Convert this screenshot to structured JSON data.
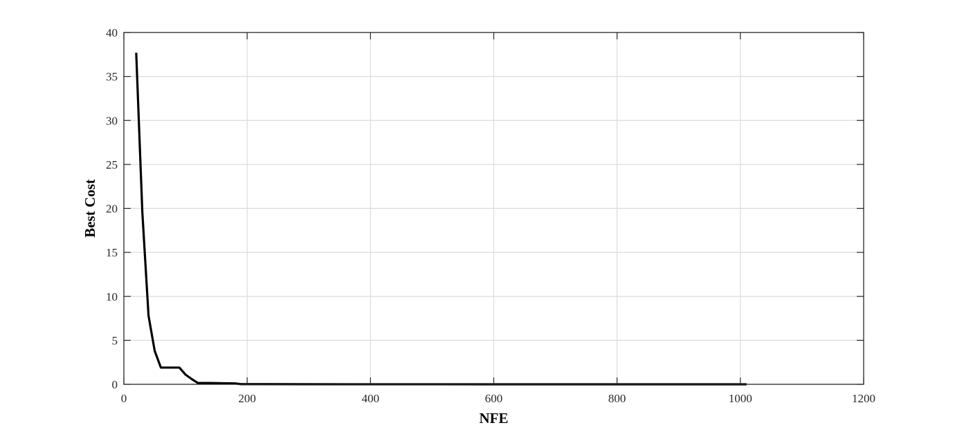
{
  "chart_data": {
    "type": "line",
    "title": "",
    "xlabel": "NFE",
    "ylabel": "Best Cost",
    "xlim": [
      0,
      1200
    ],
    "ylim": [
      0,
      40
    ],
    "xticks": [
      0,
      200,
      400,
      600,
      800,
      1000,
      1200
    ],
    "yticks": [
      0,
      5,
      10,
      15,
      20,
      25,
      30,
      35,
      40
    ],
    "grid": true,
    "legend": "none",
    "series": [
      {
        "color": "#000000",
        "points": [
          [
            20,
            37.7
          ],
          [
            30,
            19.5
          ],
          [
            40,
            7.8
          ],
          [
            50,
            3.8
          ],
          [
            60,
            1.9
          ],
          [
            70,
            1.9
          ],
          [
            80,
            1.9
          ],
          [
            90,
            1.9
          ],
          [
            100,
            1.1
          ],
          [
            110,
            0.6
          ],
          [
            120,
            0.15
          ],
          [
            140,
            0.15
          ],
          [
            160,
            0.12
          ],
          [
            180,
            0.1
          ],
          [
            190,
            0.02
          ],
          [
            200,
            0.02
          ],
          [
            300,
            0.01
          ],
          [
            400,
            0.005
          ],
          [
            600,
            0.002
          ],
          [
            800,
            0.001
          ],
          [
            1010,
            0.0005
          ]
        ]
      }
    ]
  }
}
